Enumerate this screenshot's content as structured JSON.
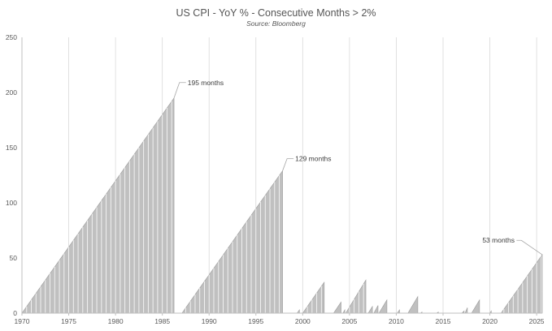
{
  "chart_data": {
    "type": "area",
    "title": "US CPI - YoY % - Consecutive Months > 2%",
    "subtitle": "Source: Bloomberg",
    "xlabel": "",
    "ylabel": "",
    "xlim": [
      1970,
      2025.6
    ],
    "ylim": [
      0,
      250
    ],
    "y_ticks": [
      0,
      50,
      100,
      150,
      200,
      250
    ],
    "x_ticks": [
      1970,
      1975,
      1980,
      1985,
      1990,
      1995,
      2000,
      2005,
      2010,
      2015,
      2020,
      2025
    ],
    "grid": "vertical",
    "colors": {
      "fill": "#c0c0c0",
      "edge": "#9a9a9a",
      "grid": "#d9d9d9",
      "axis": "#bfbfbf",
      "leader": "#a6a6a6"
    },
    "series": [
      {
        "runs": [
          {
            "start": 1970.0,
            "end": 1986.25,
            "peak": 195
          },
          {
            "start": 1987.1,
            "end": 1997.85,
            "peak": 129
          },
          {
            "start": 1999.4,
            "end": 1999.65,
            "peak": 3
          },
          {
            "start": 2000.0,
            "end": 2002.3,
            "peak": 28
          },
          {
            "start": 2003.3,
            "end": 2004.1,
            "peak": 10
          },
          {
            "start": 2004.3,
            "end": 2004.5,
            "peak": 3
          },
          {
            "start": 2004.6,
            "end": 2006.75,
            "peak": 30
          },
          {
            "start": 2007.0,
            "end": 2007.45,
            "peak": 6
          },
          {
            "start": 2007.6,
            "end": 2008.05,
            "peak": 7
          },
          {
            "start": 2008.15,
            "end": 2009.0,
            "peak": 12
          },
          {
            "start": 2010.1,
            "end": 2010.35,
            "peak": 3
          },
          {
            "start": 2011.25,
            "end": 2012.3,
            "peak": 15
          },
          {
            "start": 2012.6,
            "end": 2012.75,
            "peak": 1
          },
          {
            "start": 2014.3,
            "end": 2014.5,
            "peak": 1
          },
          {
            "start": 2017.0,
            "end": 2017.25,
            "peak": 2
          },
          {
            "start": 2017.35,
            "end": 2017.6,
            "peak": 5
          },
          {
            "start": 2018.05,
            "end": 2018.9,
            "peak": 12
          },
          {
            "start": 2020.0,
            "end": 2020.15,
            "peak": 2
          },
          {
            "start": 2021.2,
            "end": 2025.6,
            "peak": 53
          }
        ]
      }
    ],
    "annotations": [
      {
        "text": "195 months",
        "x": 1986.25,
        "y": 195,
        "label_x": 1987.7,
        "label_y": 209
      },
      {
        "text": "129 months",
        "x": 1997.85,
        "y": 129,
        "label_x": 1999.2,
        "label_y": 140
      },
      {
        "text": "53 months",
        "x": 2025.6,
        "y": 53,
        "label_x": 2019.2,
        "label_y": 66
      }
    ]
  }
}
